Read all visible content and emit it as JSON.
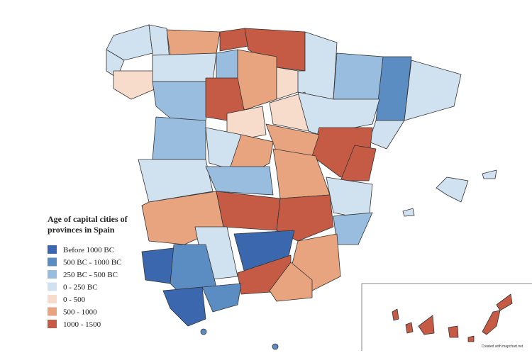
{
  "legend": {
    "title_lines": [
      "Age of capital cities of",
      "provinces in Spain"
    ],
    "items": [
      {
        "label": "Before 1000 BC",
        "color": "#3a67ae"
      },
      {
        "label": "500 BC - 1000 BC",
        "color": "#5b8dc3"
      },
      {
        "label": "250 BC - 500 BC",
        "color": "#98bddf"
      },
      {
        "label": "0 - 250 BC",
        "color": "#d0e1f0"
      },
      {
        "label": "0 - 500",
        "color": "#f7dccb"
      },
      {
        "label": "500 - 1000",
        "color": "#e8a37f"
      },
      {
        "label": "1000 - 1500",
        "color": "#c55b45"
      }
    ]
  },
  "credit": "Created with mapchart.net"
}
